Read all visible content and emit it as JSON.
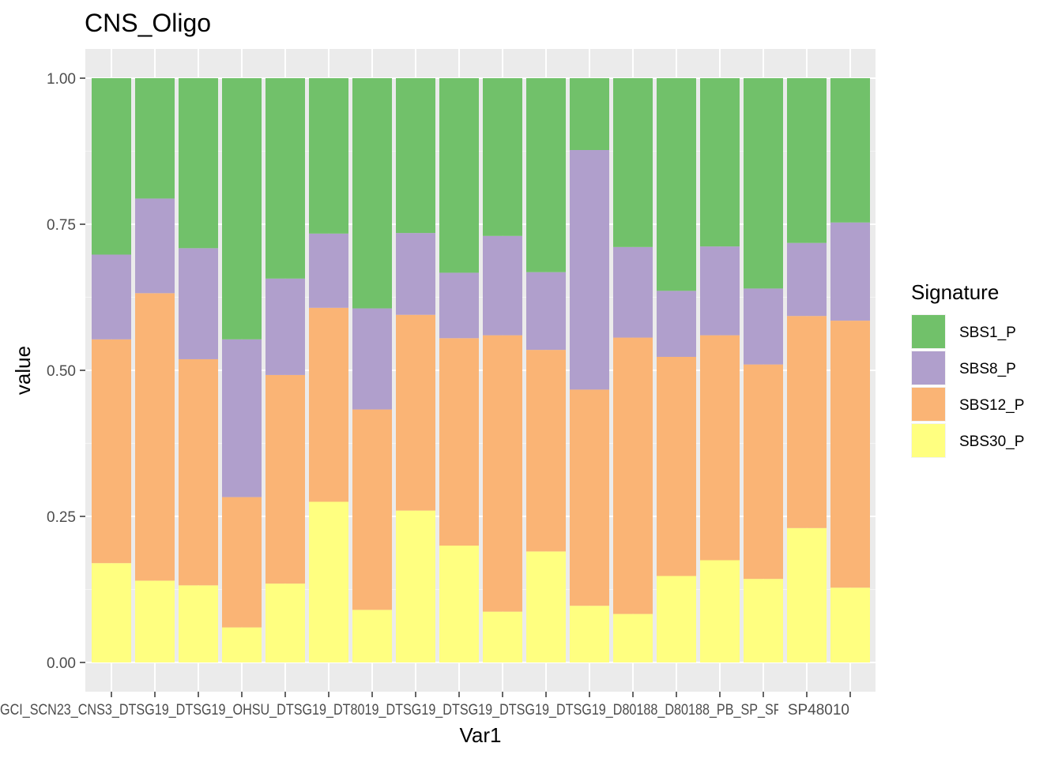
{
  "chart_data": {
    "type": "bar",
    "stacked": true,
    "title": "CNS_Oligo",
    "xlabel": "Var1",
    "ylabel": "value",
    "ylim": [
      0,
      1
    ],
    "yticks": [
      "0.00",
      "0.25",
      "0.50",
      "0.75",
      "1.00"
    ],
    "grid": true,
    "legend_title": "Signature",
    "legend_position": "right",
    "x_tick_text_overlapping": "GCI_SCN23_CNS3_DTSG19_DTSG19_OHSU_DTSG19_DT8019_DTSG19_DTSG19_DTSG19_DTSG19_D80188_D80188_PB_SP_SP4_SP48010",
    "x_tick_text_visible_tail": "SP48010",
    "categories": [
      "",
      "",
      "",
      "",
      "",
      "",
      "",
      "",
      "",
      "",
      "",
      "",
      "",
      "",
      "",
      "",
      "",
      ""
    ],
    "series": [
      {
        "name": "SBS30_P",
        "color": "#FFFF80",
        "values": [
          0.17,
          0.14,
          0.132,
          0.06,
          0.135,
          0.275,
          0.09,
          0.26,
          0.2,
          0.087,
          0.19,
          0.097,
          0.083,
          0.148,
          0.175,
          0.143,
          0.23,
          0.128
        ]
      },
      {
        "name": "SBS12_P",
        "color": "#FAB475",
        "values": [
          0.383,
          0.492,
          0.387,
          0.223,
          0.357,
          0.332,
          0.343,
          0.335,
          0.355,
          0.473,
          0.345,
          0.37,
          0.473,
          0.375,
          0.385,
          0.367,
          0.363,
          0.457
        ]
      },
      {
        "name": "SBS8_P",
        "color": "#B09FCC",
        "values": [
          0.145,
          0.162,
          0.19,
          0.27,
          0.165,
          0.127,
          0.173,
          0.14,
          0.112,
          0.17,
          0.133,
          0.41,
          0.155,
          0.113,
          0.152,
          0.13,
          0.125,
          0.168
        ]
      },
      {
        "name": "SBS1_P",
        "color": "#71C16A",
        "values": [
          0.302,
          0.206,
          0.291,
          0.447,
          0.343,
          0.266,
          0.394,
          0.265,
          0.333,
          0.27,
          0.332,
          0.123,
          0.289,
          0.364,
          0.288,
          0.36,
          0.282,
          0.247
        ]
      }
    ],
    "legend_order": [
      "SBS1_P",
      "SBS8_P",
      "SBS12_P",
      "SBS30_P"
    ]
  }
}
